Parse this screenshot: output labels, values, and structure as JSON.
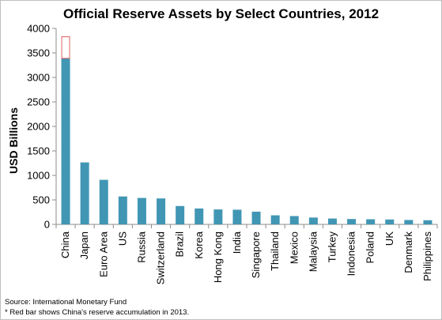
{
  "chart_data": {
    "type": "bar",
    "title": "Official Reserve Assets by Select Countries, 2012",
    "ylabel": "USD Billions",
    "xlabel": "",
    "ylim": [
      0,
      4000
    ],
    "yticks": [
      0,
      500,
      1000,
      1500,
      2000,
      2500,
      3000,
      3500,
      4000
    ],
    "categories": [
      "China",
      "Japan",
      "Euro Area",
      "US",
      "Russia",
      "Switzerland",
      "Brazil",
      "Korea",
      "Hong Kong",
      "India",
      "Singapore",
      "Thailand",
      "Mexico",
      "Malaysia",
      "Turkey",
      "Indonesia",
      "Poland",
      "UK",
      "Denmark",
      "Philippines"
    ],
    "series": [
      {
        "values": [
          3390,
          1265,
          910,
          570,
          540,
          530,
          375,
          325,
          305,
          300,
          260,
          185,
          170,
          140,
          120,
          110,
          105,
          100,
          90,
          85
        ],
        "color": "#4196b4"
      },
      {
        "values": [
          440,
          0,
          0,
          0,
          0,
          0,
          0,
          0,
          0,
          0,
          0,
          0,
          0,
          0,
          0,
          0,
          0,
          0,
          0,
          0
        ],
        "color": "#e06060"
      }
    ],
    "grid": false,
    "legend": "none"
  },
  "footer": {
    "source": "Source: International Monetary Fund",
    "note": "* Red bar shows China's reserve accumulation in 2013."
  }
}
